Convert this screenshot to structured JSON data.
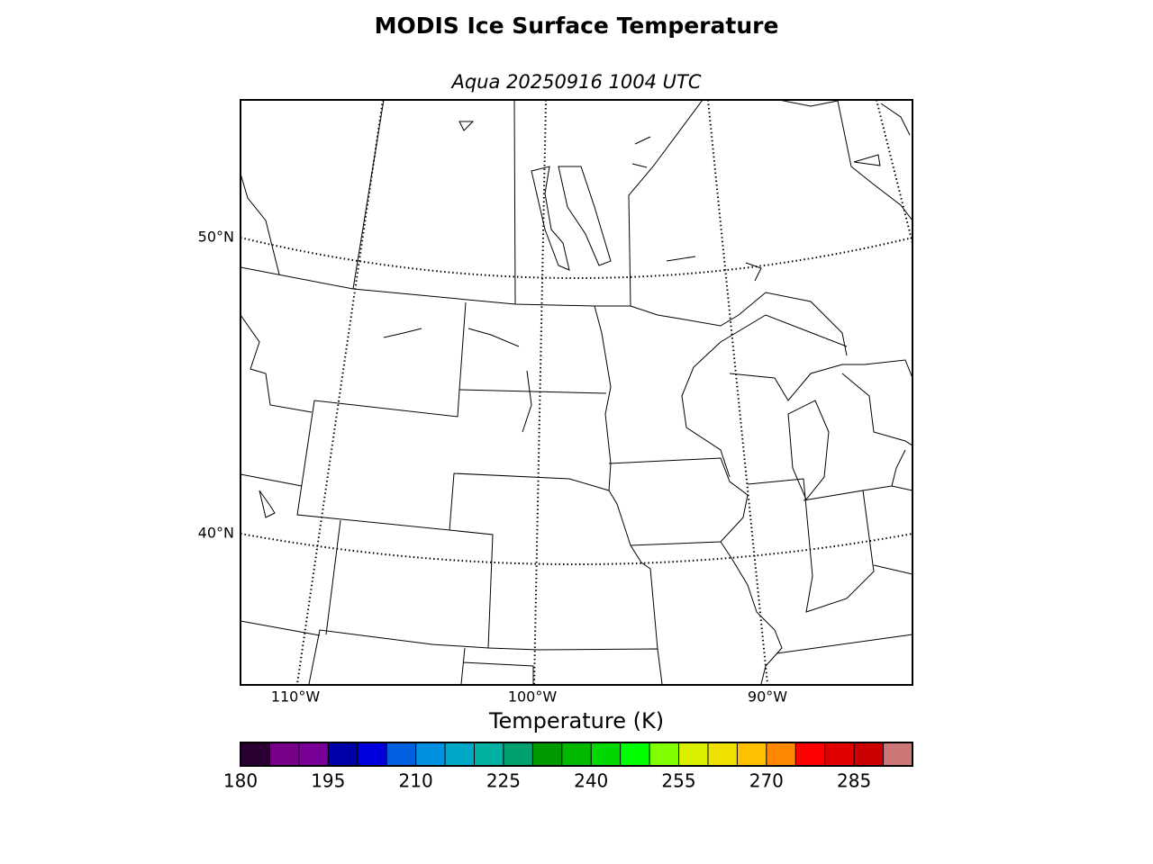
{
  "title": "MODIS Ice Surface Temperature",
  "subtitle": "Aqua 20250916 1004 UTC",
  "map": {
    "lat_labels": [
      "50°N",
      "40°N"
    ],
    "lon_labels": [
      "110°W",
      "100°W",
      "90°W"
    ]
  },
  "colorbar": {
    "label": "Temperature (K)",
    "xlim": [
      180,
      295
    ],
    "ticks": [
      180,
      195,
      210,
      225,
      240,
      255,
      270,
      285
    ],
    "colors": [
      "#2a0033",
      "#780088",
      "#780098",
      "#0000a8",
      "#0000dd",
      "#0060e0",
      "#0090e0",
      "#00a8c8",
      "#00b0a0",
      "#00a070",
      "#009900",
      "#00b800",
      "#00d800",
      "#00ff00",
      "#80ff00",
      "#d8f000",
      "#f0e000",
      "#ffc000",
      "#ff8800",
      "#ff0000",
      "#e00000",
      "#cc0000",
      "#cc7777"
    ]
  }
}
